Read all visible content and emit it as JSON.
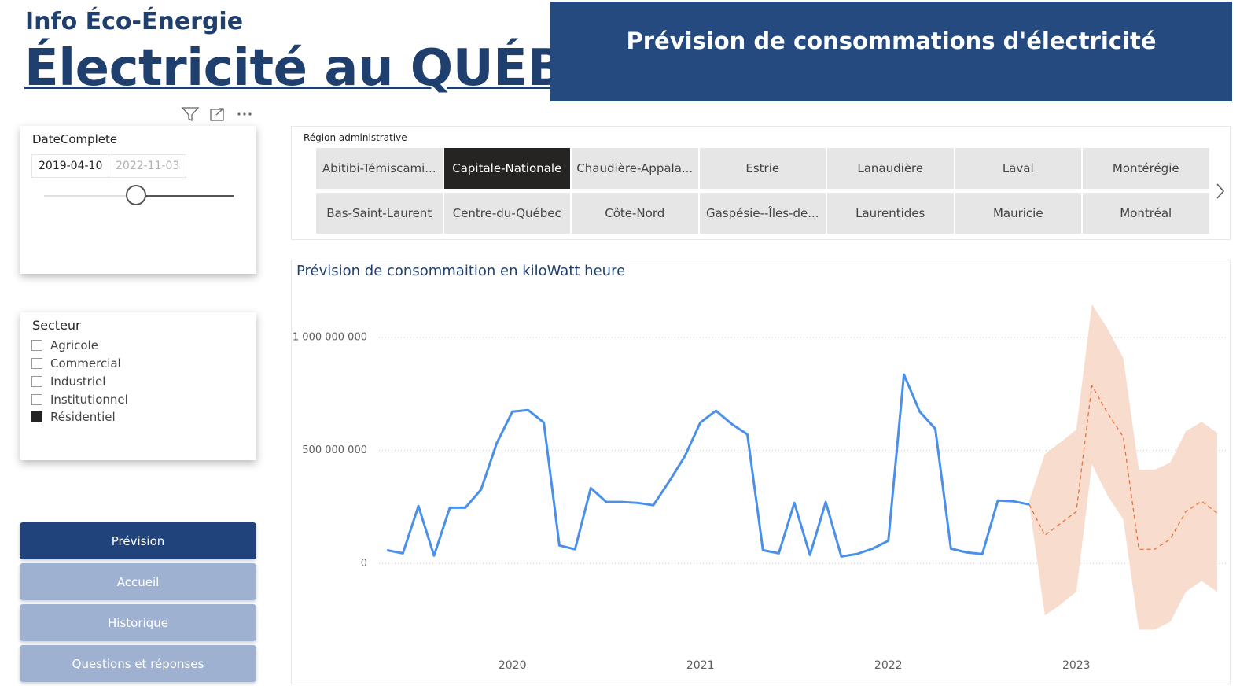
{
  "header": {
    "subtitle": "Info Éco-Énergie",
    "title": "Électricité au QUÉBEC",
    "banner": "Prévision de consommations d'électricité"
  },
  "date_slicer": {
    "label": "DateComplete",
    "start": "2019-04-10",
    "end": "2022-11-03"
  },
  "region_slicer": {
    "label": "Région administrative",
    "options": [
      "Abitibi-Témiscami...",
      "Capitale-Nationale",
      "Chaudière-Appala...",
      "Estrie",
      "Lanaudière",
      "Laval",
      "Montérégie",
      "Bas-Saint-Laurent",
      "Centre-du-Québec",
      "Côte-Nord",
      "Gaspésie--Îles-de...",
      "Laurentides",
      "Mauricie",
      "Montréal"
    ]
  },
  "sector_slicer": {
    "label": "Secteur",
    "options": [
      "Agricole",
      "Commercial",
      "Industriel",
      "Institutionnel",
      "Résidentiel"
    ]
  },
  "nav": [
    "Prévision",
    "Accueil",
    "Historique",
    "Questions et réponses"
  ],
  "chart_data": {
    "type": "line",
    "title": "Prévision de consommaition en kiloWatt heure",
    "x": [
      2019.333,
      2019.417,
      2019.5,
      2019.583,
      2019.667,
      2019.75,
      2019.833,
      2019.917,
      2020,
      2020.083,
      2020.167,
      2020.25,
      2020.333,
      2020.417,
      2020.5,
      2020.583,
      2020.667,
      2020.75,
      2020.833,
      2020.917,
      2021,
      2021.083,
      2021.167,
      2021.25,
      2021.333,
      2021.417,
      2021.5,
      2021.583,
      2021.667,
      2021.75,
      2021.833,
      2021.917,
      2022,
      2022.083,
      2022.167,
      2022.25,
      2022.333,
      2022.417,
      2022.5,
      2022.583,
      2022.667,
      2022.75,
      2022.833,
      2022.917,
      2023,
      2023.083,
      2023.167,
      2023.25,
      2023.333,
      2023.417,
      2023.5,
      2023.583,
      2023.667,
      2023.75
    ],
    "xlim": [
      2019.24,
      2023.8
    ],
    "xticks": [
      2020,
      2021,
      2022,
      2023
    ],
    "ylim": [
      -500000000,
      1240000000
    ],
    "yticks": [
      0,
      {
        "value": 500000000,
        "label": "500 000 000"
      },
      {
        "value": 1000000000,
        "label": "1 000 000 000"
      }
    ],
    "grid": true,
    "series": [
      {
        "color": "#4a8fe8",
        "style": "solid",
        "values": [
          59000000,
          45000000,
          254000000,
          35000000,
          247000000,
          247000000,
          327000000,
          533000000,
          672000000,
          679000000,
          624000000,
          80000000,
          63000000,
          334000000,
          272000000,
          272000000,
          268000000,
          258000000,
          362000000,
          474000000,
          624000000,
          676000000,
          617000000,
          571000000,
          59000000,
          45000000,
          268000000,
          38000000,
          272000000,
          31000000,
          42000000,
          66000000,
          101000000,
          836000000,
          672000000,
          596000000,
          66000000,
          49000000,
          42000000,
          279000000,
          275000000,
          261000000,
          null,
          null,
          null,
          null,
          null,
          null,
          null,
          null,
          null,
          null,
          null,
          null
        ]
      },
      {
        "color": "#e8703a",
        "style": "dashed",
        "values": [
          null,
          null,
          null,
          null,
          null,
          null,
          null,
          null,
          null,
          null,
          null,
          null,
          null,
          null,
          null,
          null,
          null,
          null,
          null,
          null,
          null,
          null,
          null,
          null,
          null,
          null,
          null,
          null,
          null,
          null,
          null,
          null,
          null,
          null,
          null,
          null,
          null,
          null,
          null,
          null,
          null,
          261000000,
          125000000,
          178000000,
          230000000,
          787000000,
          665000000,
          561000000,
          63000000,
          63000000,
          108000000,
          230000000,
          275000000,
          223000000
        ]
      }
    ],
    "band": {
      "color": "#f8dccd",
      "upper": [
        null,
        null,
        null,
        null,
        null,
        null,
        null,
        null,
        null,
        null,
        null,
        null,
        null,
        null,
        null,
        null,
        null,
        null,
        null,
        null,
        null,
        null,
        null,
        null,
        null,
        null,
        null,
        null,
        null,
        null,
        null,
        null,
        null,
        null,
        null,
        null,
        null,
        null,
        null,
        null,
        null,
        279000000,
        484000000,
        537000000,
        592000000,
        1146000000,
        1038000000,
        909000000,
        415000000,
        415000000,
        446000000,
        585000000,
        627000000,
        578000000
      ],
      "lower": [
        null,
        null,
        null,
        null,
        null,
        null,
        null,
        null,
        null,
        null,
        null,
        null,
        null,
        null,
        null,
        null,
        null,
        null,
        null,
        null,
        null,
        null,
        null,
        null,
        null,
        null,
        null,
        null,
        null,
        null,
        null,
        null,
        null,
        null,
        null,
        null,
        null,
        null,
        null,
        null,
        null,
        261000000,
        -230000000,
        -181000000,
        -125000000,
        439000000,
        300000000,
        195000000,
        -293000000,
        -293000000,
        -258000000,
        -125000000,
        -77000000,
        -125000000
      ]
    }
  }
}
